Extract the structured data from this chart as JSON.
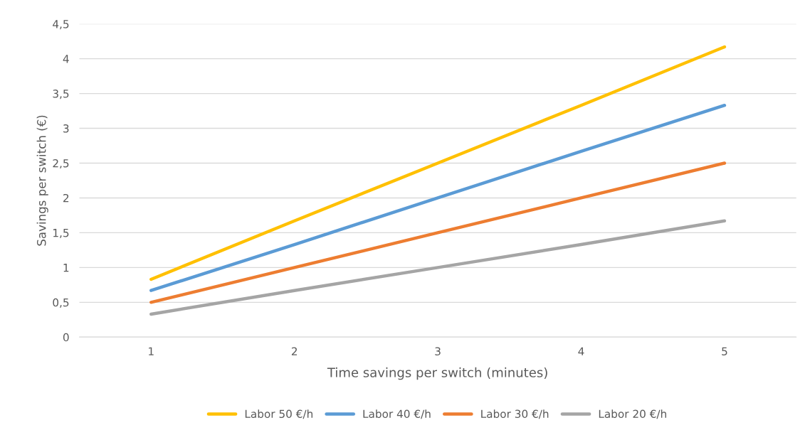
{
  "chart_data": {
    "type": "line",
    "xlabel": "Time savings per switch (minutes)",
    "ylabel": "Savings per switch (€)",
    "categories": [
      "1",
      "2",
      "3",
      "4",
      "5"
    ],
    "series": [
      {
        "name": "Labor 50 €/h",
        "color": "#ffc000",
        "values": [
          0.83,
          1.67,
          2.5,
          3.33,
          4.17
        ]
      },
      {
        "name": "Labor 40 €/h",
        "color": "#5b9bd5",
        "values": [
          0.67,
          1.33,
          2,
          2.67,
          3.33
        ]
      },
      {
        "name": "Labor 30 €/h",
        "color": "#ed7d31",
        "values": [
          0.5,
          1,
          1.5,
          2,
          2.5
        ]
      },
      {
        "name": "Labor 20 €/h",
        "color": "#a5a5a5",
        "values": [
          0.33,
          0.67,
          1,
          1.33,
          1.67
        ]
      }
    ],
    "ylim": [
      0,
      4.5
    ],
    "yticks": [
      0,
      {
        "value": 0.5,
        "label": "0,5"
      },
      1,
      {
        "value": 1.5,
        "label": "1,5"
      },
      2,
      {
        "value": 2.5,
        "label": "2,5"
      },
      3,
      {
        "value": 3.5,
        "label": "3,5"
      },
      4,
      {
        "value": 4.5,
        "label": "4,5"
      }
    ],
    "grid": "y",
    "legend": "bottom",
    "marker": "none",
    "line_style": "solid"
  }
}
